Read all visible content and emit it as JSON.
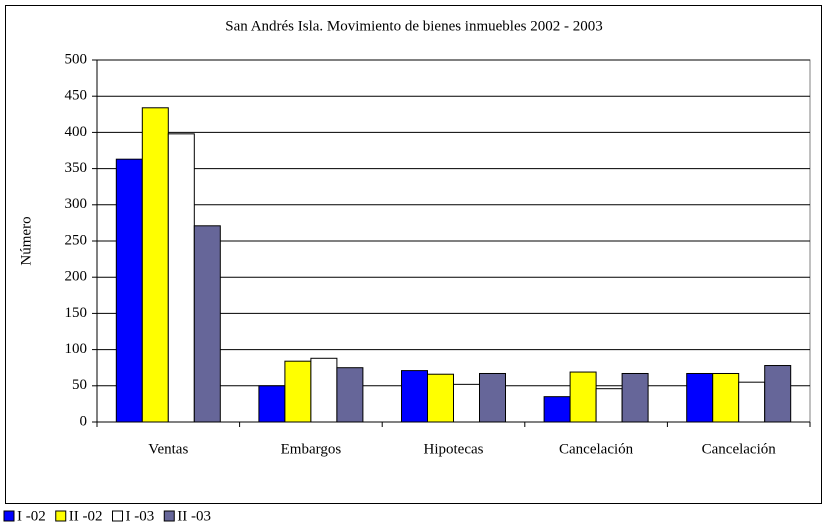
{
  "chart_data": {
    "type": "bar",
    "title": "San Andrés Isla.  Movimiento de bienes inmuebles 2002 - 2003",
    "y_label": "Número",
    "categories": [
      "Ventas",
      "Embargos",
      "Hipotecas",
      "Cancelación",
      "Cancelación"
    ],
    "series": [
      {
        "name": "I -02",
        "color": "#0000ff",
        "values": [
          363,
          50,
          71,
          35,
          67
        ]
      },
      {
        "name": "II -02",
        "color": "#ffff00",
        "values": [
          434,
          84,
          66,
          69,
          67
        ]
      },
      {
        "name": "I -03",
        "color": "#ffffff",
        "values": [
          398,
          88,
          52,
          46,
          55
        ]
      },
      {
        "name": "II -03",
        "color": "#666699",
        "values": [
          271,
          75,
          67,
          67,
          78
        ]
      }
    ],
    "ylim": [
      0,
      500
    ],
    "yticks": [
      0,
      50,
      100,
      150,
      200,
      250,
      300,
      350,
      400,
      450,
      500
    ],
    "grid": true,
    "legend": "bottom-left"
  }
}
